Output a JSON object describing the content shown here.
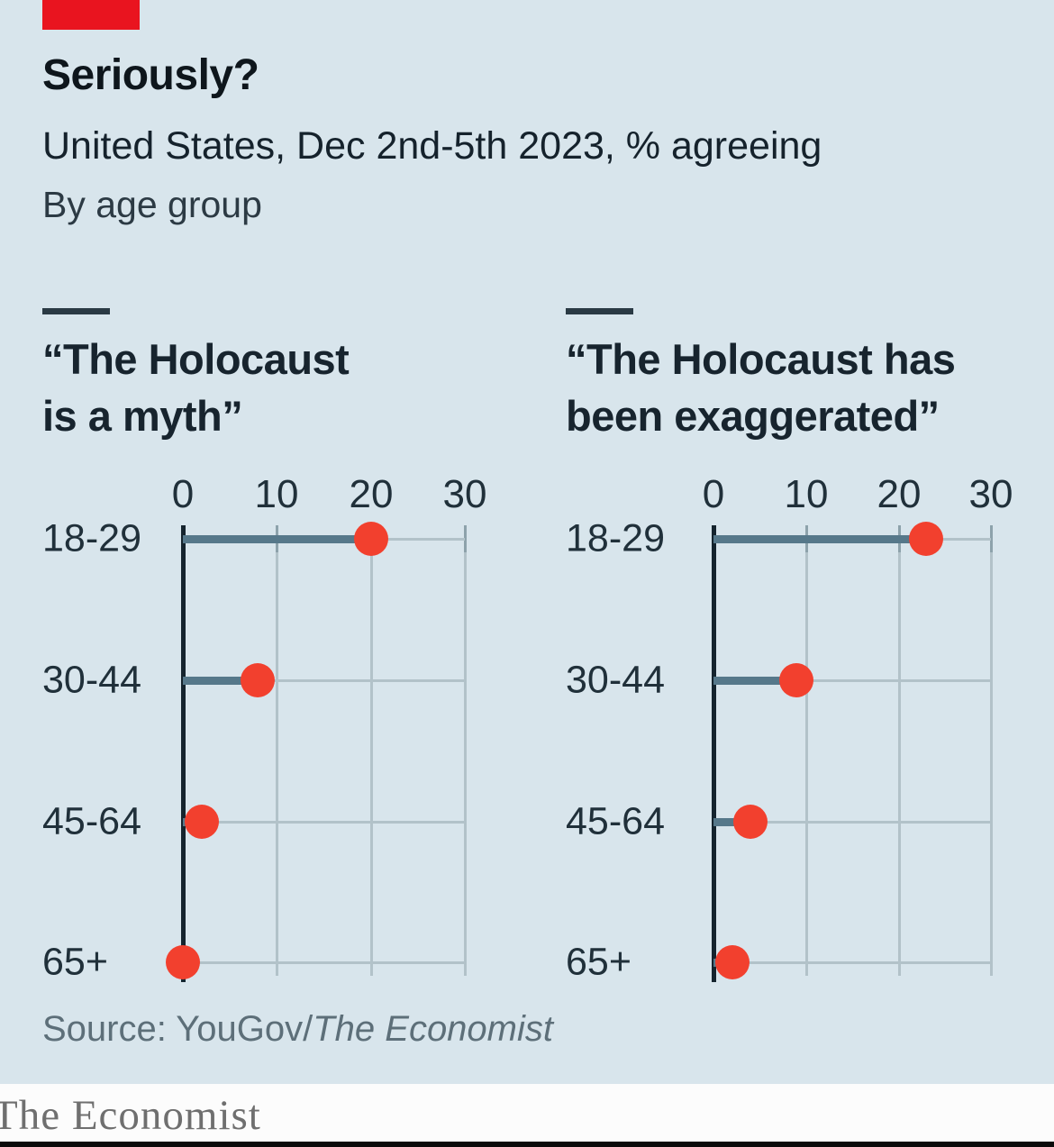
{
  "header": {
    "title": "Seriously?",
    "subtitle": "United States, Dec 2nd-5th 2023, % agreeing",
    "byline": "By age group"
  },
  "chart_data": [
    {
      "type": "scatter",
      "title_lines": [
        "“The Holocaust",
        "is a myth”"
      ],
      "categories": [
        "18-29",
        "30-44",
        "45-64",
        "65+"
      ],
      "values": [
        20,
        8,
        2,
        0
      ],
      "xticks": [
        "0",
        "10",
        "20",
        "30"
      ],
      "xlim": [
        0,
        30
      ],
      "xlabel": "",
      "ylabel": "",
      "grid": "on",
      "legend": "none",
      "marker": "dot-with-stem"
    },
    {
      "type": "scatter",
      "title_lines": [
        "“The Holocaust has",
        "been exaggerated”"
      ],
      "categories": [
        "18-29",
        "30-44",
        "45-64",
        "65+"
      ],
      "values": [
        23,
        9,
        4,
        2
      ],
      "xticks": [
        "0",
        "10",
        "20",
        "30"
      ],
      "xlim": [
        0,
        30
      ],
      "xlabel": "",
      "ylabel": "",
      "grid": "on",
      "legend": "none",
      "marker": "dot-with-stem"
    }
  ],
  "footer": {
    "source_prefix": "Source: YouGov/",
    "source_publication": "The Economist",
    "logo_text": "The Economist"
  },
  "colors": {
    "background": "#d8e5ec",
    "brand_red": "#e9141f",
    "dot": "#f2402e",
    "stem": "#56788a",
    "axis": "#15242e",
    "gridline": "#b2c2c9",
    "headline_text": "#0e161c",
    "source_text": "#5d6f79",
    "logo_text": "#6f6f6f"
  }
}
